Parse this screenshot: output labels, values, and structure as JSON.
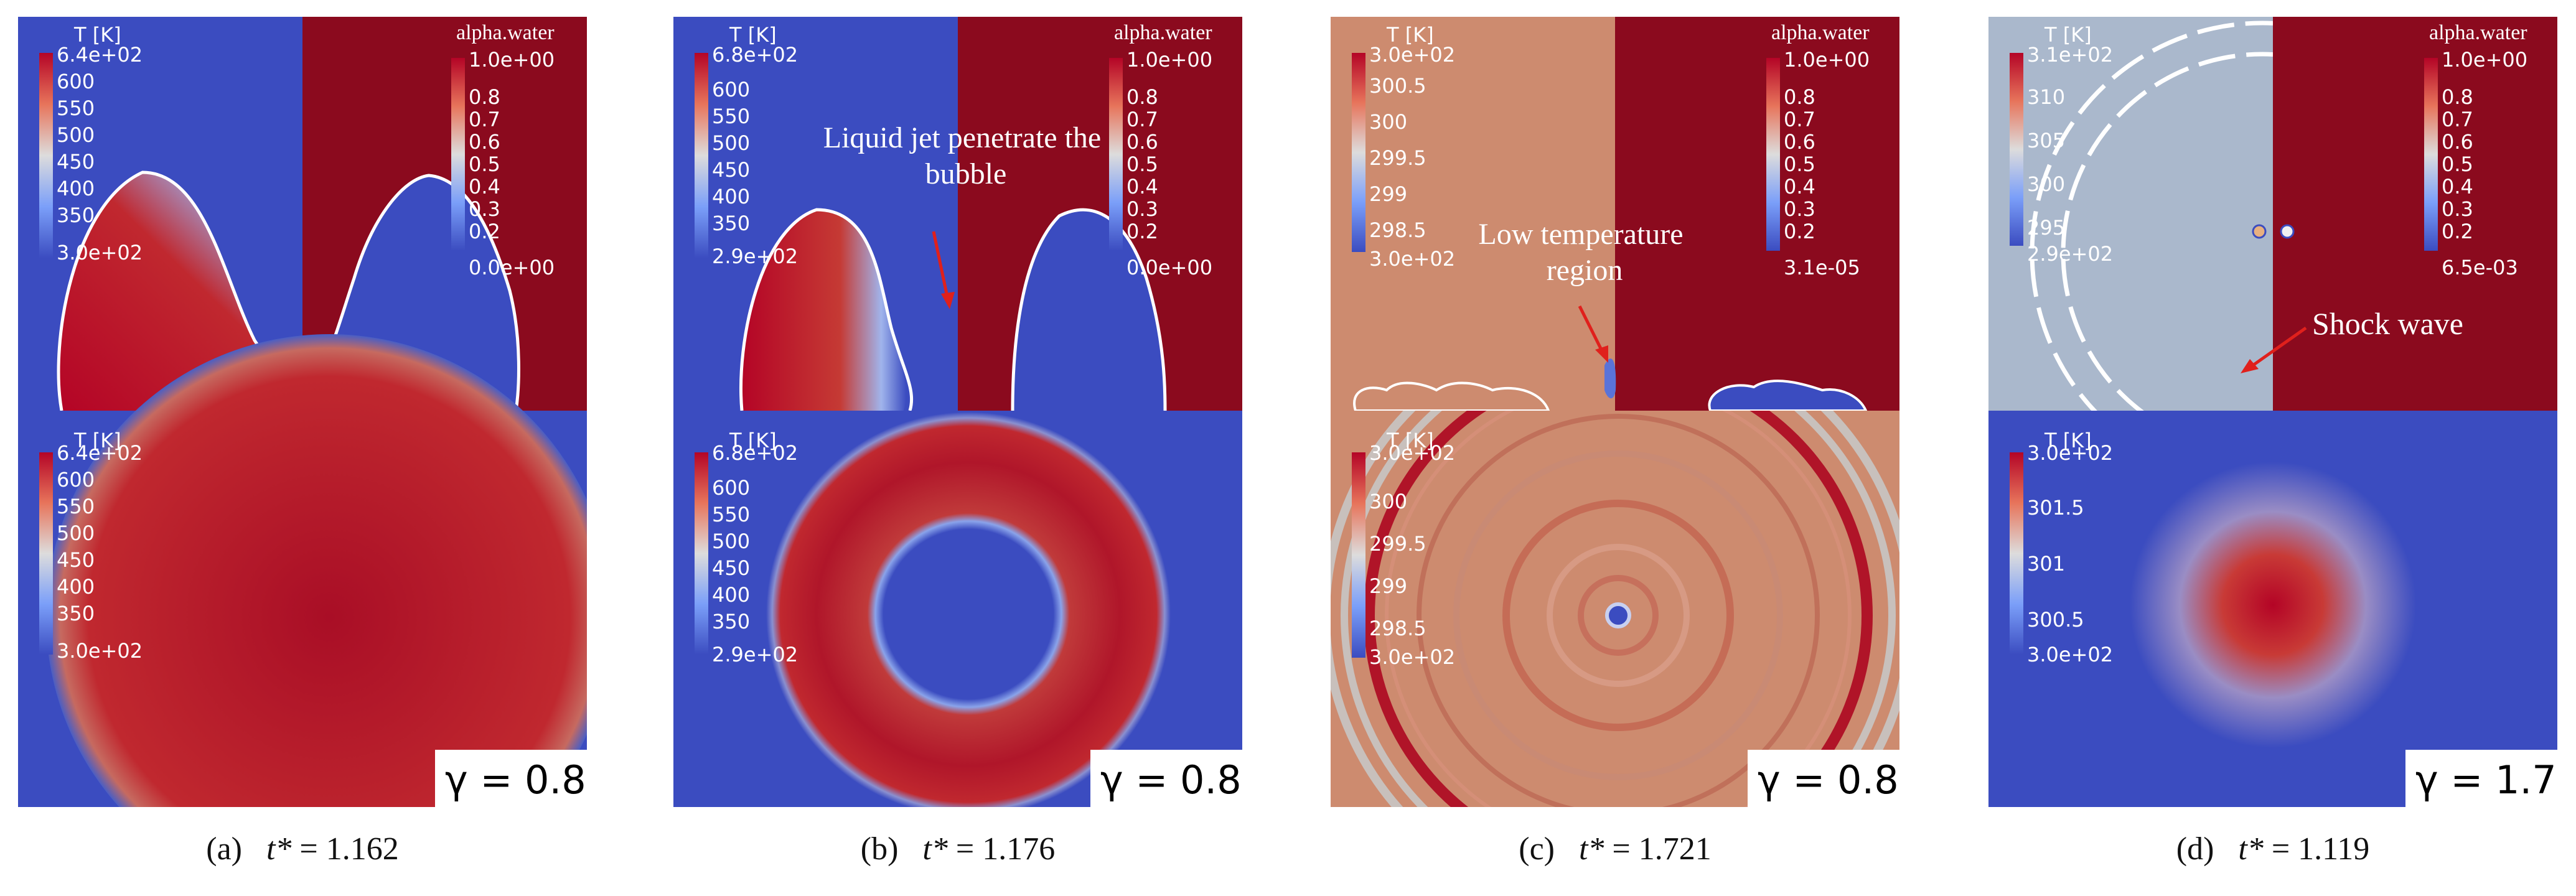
{
  "panels": [
    {
      "id": "a",
      "top_legend_left": {
        "title": "T [K]",
        "max": "6.4e+02",
        "ticks": [
          "600",
          "550",
          "500",
          "450",
          "400",
          "350"
        ],
        "min": "3.0e+02"
      },
      "top_legend_right": {
        "title": "alpha.water",
        "max": "1.0e+00",
        "ticks": [
          "0.8",
          "0.7",
          "0.6",
          "0.5",
          "0.4",
          "0.3",
          "0.2"
        ],
        "min": "0.0e+00"
      },
      "bottom_legend": {
        "title": "T [K]",
        "max": "6.4e+02",
        "ticks": [
          "600",
          "550",
          "500",
          "450",
          "400",
          "350"
        ],
        "min": "3.0e+02"
      },
      "gamma_label": "γ = 0.8",
      "annotation": "",
      "caption_label": "(a)",
      "caption_t": "t*",
      "caption_value": "= 1.162"
    },
    {
      "id": "b",
      "top_legend_left": {
        "title": "T [K]",
        "max": "6.8e+02",
        "ticks": [
          "600",
          "550",
          "500",
          "450",
          "400",
          "350"
        ],
        "min": "2.9e+02"
      },
      "top_legend_right": {
        "title": "alpha.water",
        "max": "1.0e+00",
        "ticks": [
          "0.8",
          "0.7",
          "0.6",
          "0.5",
          "0.4",
          "0.3",
          "0.2"
        ],
        "min": "0.0e+00"
      },
      "bottom_legend": {
        "title": "T [K]",
        "max": "6.8e+02",
        "ticks": [
          "600",
          "550",
          "500",
          "450",
          "400",
          "350"
        ],
        "min": "2.9e+02"
      },
      "gamma_label": "γ = 0.8",
      "annotation": "Liquid jet penetrate the bubble",
      "caption_label": "(b)",
      "caption_t": "t*",
      "caption_value": "= 1.176"
    },
    {
      "id": "c",
      "top_legend_left": {
        "title": "T [K]",
        "max": "3.0e+02",
        "ticks": [
          "300.5",
          "300",
          "299.5",
          "299",
          "298.5"
        ],
        "min": "3.0e+02"
      },
      "top_legend_right": {
        "title": "alpha.water",
        "max": "1.0e+00",
        "ticks": [
          "0.8",
          "0.7",
          "0.6",
          "0.5",
          "0.4",
          "0.3",
          "0.2"
        ],
        "min": "3.1e-05"
      },
      "bottom_legend": {
        "title": "T [K]",
        "max": "3.0e+02",
        "ticks": [
          "300",
          "299.5",
          "299",
          "298.5"
        ],
        "min": "3.0e+02"
      },
      "gamma_label": "γ = 0.8",
      "annotation": "Low temperature region",
      "caption_label": "(c)",
      "caption_t": "t*",
      "caption_value": "= 1.721"
    },
    {
      "id": "d",
      "top_legend_left": {
        "title": "T [K]",
        "max": "3.1e+02",
        "ticks": [
          "310",
          "305",
          "300",
          "295"
        ],
        "min": "2.9e+02"
      },
      "top_legend_right": {
        "title": "alpha.water",
        "max": "1.0e+00",
        "ticks": [
          "0.8",
          "0.7",
          "0.6",
          "0.5",
          "0.4",
          "0.3",
          "0.2"
        ],
        "min": "6.5e-03"
      },
      "bottom_legend": {
        "title": "T [K]",
        "max": "3.0e+02",
        "ticks": [
          "301.5",
          "301",
          "300.5"
        ],
        "min": "3.0e+02"
      },
      "gamma_label": "γ = 1.7",
      "annotation": "Shock wave",
      "caption_label": "(d)",
      "caption_t": "t*",
      "caption_value": "= 1.119"
    }
  ],
  "colors": {
    "blue": "#3b4cc0",
    "red": "#b40426",
    "water": "#8b0a1e",
    "salmon": "#cd8b6f",
    "grey": "#aab8cc",
    "white": "#f2f2f2"
  }
}
